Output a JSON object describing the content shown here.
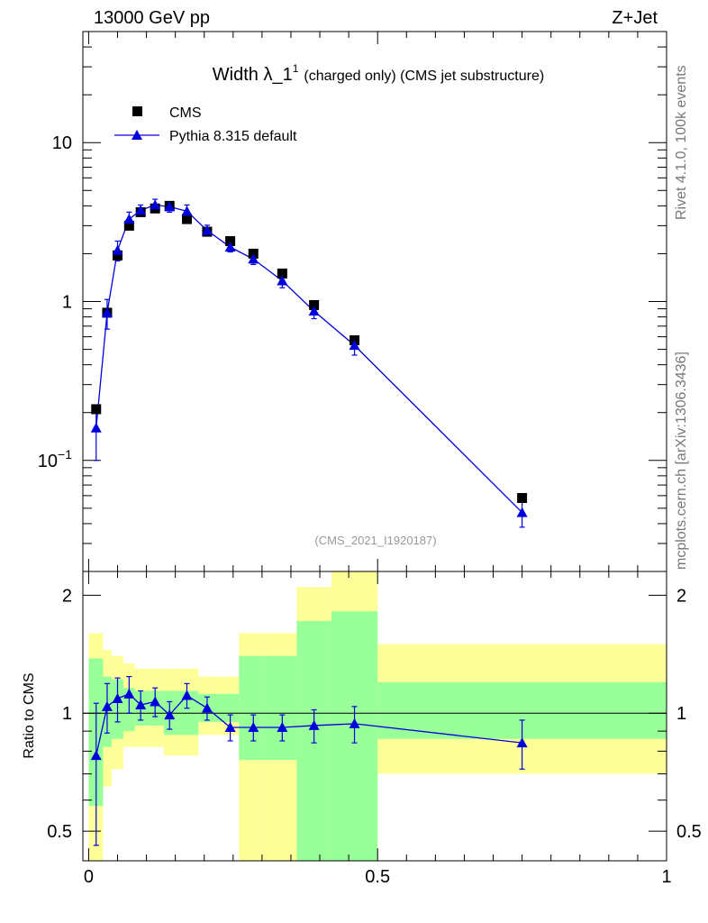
{
  "header": {
    "left": "13000 GeV pp",
    "right": "Z+Jet"
  },
  "side_labels": {
    "rivet": "Rivet 4.1.0,  100k events",
    "mcplots": "mcplots.cern.ch [arXiv:1306.3436]"
  },
  "footnote": "(CMS_2021_I1920187)",
  "chart_data": [
    {
      "type": "scatter",
      "title_main": "Width λ_1",
      "title_sup": "1",
      "title_rest": "(charged only) (CMS jet substructure)",
      "yscale": "log",
      "ylim": [
        0.02,
        50
      ],
      "xlim": [
        -0.01,
        1.0
      ],
      "yticks": [
        {
          "value": 0.1,
          "label_base": "10",
          "label_exp": "−1"
        },
        {
          "value": 1,
          "label_base": "1",
          "label_exp": ""
        },
        {
          "value": 10,
          "label_base": "10",
          "label_exp": ""
        }
      ],
      "legend": {
        "position": "top-left",
        "entries": [
          {
            "label": "CMS",
            "marker": "square",
            "color": "#000000"
          },
          {
            "label": "Pythia 8.315 default",
            "marker": "triangle",
            "color": "#0000dd"
          }
        ]
      },
      "series": [
        {
          "name": "CMS",
          "color": "#000000",
          "marker": "square",
          "x": [
            0.013,
            0.032,
            0.05,
            0.07,
            0.09,
            0.115,
            0.14,
            0.17,
            0.205,
            0.245,
            0.285,
            0.335,
            0.39,
            0.46,
            0.75
          ],
          "y": [
            0.21,
            0.85,
            1.95,
            3.0,
            3.65,
            3.85,
            4.0,
            3.3,
            2.75,
            2.4,
            2.0,
            1.5,
            0.95,
            0.57,
            0.058
          ]
        },
        {
          "name": "Pythia 8.315 default",
          "color": "#0000dd",
          "marker": "triangle",
          "x": [
            0.013,
            0.032,
            0.05,
            0.07,
            0.09,
            0.115,
            0.14,
            0.17,
            0.205,
            0.245,
            0.285,
            0.335,
            0.39,
            0.46,
            0.75
          ],
          "y": [
            0.16,
            0.85,
            2.1,
            3.3,
            3.75,
            4.05,
            3.95,
            3.7,
            2.8,
            2.2,
            1.85,
            1.35,
            0.87,
            0.53,
            0.047
          ],
          "err_up": [
            0.06,
            0.18,
            0.3,
            0.35,
            0.3,
            0.35,
            0.3,
            0.35,
            0.22,
            0.15,
            0.14,
            0.13,
            0.09,
            0.07,
            0.009
          ],
          "err_down": [
            0.06,
            0.18,
            0.3,
            0.35,
            0.3,
            0.35,
            0.3,
            0.35,
            0.22,
            0.15,
            0.14,
            0.13,
            0.09,
            0.07,
            0.009
          ]
        }
      ]
    },
    {
      "type": "scatter",
      "ylabel": "Ratio to CMS",
      "yscale": "log",
      "ylim": [
        0.42,
        2.3
      ],
      "xlim": [
        -0.01,
        1.0
      ],
      "xticks": [
        {
          "value": 0,
          "label": "0"
        },
        {
          "value": 0.5,
          "label": "0.5"
        },
        {
          "value": 1,
          "label": "1"
        }
      ],
      "yticks": [
        {
          "value": 0.5,
          "label": "0.5"
        },
        {
          "value": 1,
          "label": "1"
        },
        {
          "value": 2,
          "label": "2"
        }
      ],
      "bands": {
        "bin_edges": [
          0.0,
          0.025,
          0.04,
          0.06,
          0.08,
          0.1,
          0.13,
          0.15,
          0.19,
          0.22,
          0.26,
          0.3,
          0.36,
          0.42,
          0.5,
          1.0
        ],
        "yellow_low": [
          0.42,
          0.65,
          0.72,
          0.82,
          0.82,
          0.82,
          0.78,
          0.78,
          0.88,
          0.88,
          0.4,
          0.4,
          0.42,
          0.42,
          0.7
        ],
        "yellow_high": [
          1.6,
          1.45,
          1.4,
          1.34,
          1.3,
          1.3,
          1.3,
          1.3,
          1.24,
          1.24,
          1.6,
          1.6,
          2.1,
          2.3,
          1.5
        ],
        "green_low": [
          0.58,
          0.82,
          0.86,
          0.9,
          0.93,
          0.93,
          0.88,
          0.88,
          0.95,
          0.95,
          0.76,
          0.76,
          0.42,
          0.42,
          0.86
        ],
        "green_high": [
          1.38,
          1.24,
          1.22,
          1.16,
          1.14,
          1.14,
          1.14,
          1.14,
          1.12,
          1.12,
          1.4,
          1.4,
          1.72,
          1.82,
          1.2
        ],
        "yellow_color": "#ffff99",
        "green_color": "#99ff99"
      },
      "series": [
        {
          "name": "Pythia 8.315 default / CMS",
          "color": "#0000dd",
          "marker": "triangle",
          "x": [
            0.013,
            0.032,
            0.05,
            0.07,
            0.09,
            0.115,
            0.14,
            0.17,
            0.205,
            0.245,
            0.285,
            0.335,
            0.39,
            0.46,
            0.75
          ],
          "y": [
            0.78,
            1.04,
            1.09,
            1.12,
            1.05,
            1.07,
            0.99,
            1.11,
            1.03,
            0.92,
            0.92,
            0.92,
            0.93,
            0.94,
            0.84
          ],
          "err_up": [
            0.28,
            0.15,
            0.14,
            0.12,
            0.09,
            0.09,
            0.08,
            0.08,
            0.07,
            0.07,
            0.07,
            0.07,
            0.09,
            0.1,
            0.12
          ],
          "err_down": [
            0.32,
            0.15,
            0.14,
            0.12,
            0.09,
            0.09,
            0.08,
            0.08,
            0.07,
            0.07,
            0.07,
            0.07,
            0.09,
            0.1,
            0.12
          ]
        }
      ]
    }
  ]
}
